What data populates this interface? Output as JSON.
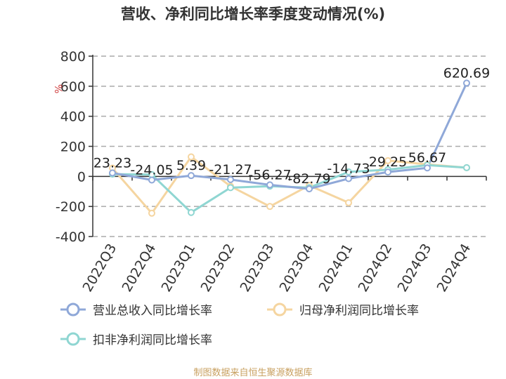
{
  "chart_data": {
    "type": "line",
    "title": "营收、净利同比增长率季度变动情况(%)",
    "ylabel": "%",
    "ylim": [
      -400,
      800
    ],
    "yticks": [
      -400,
      -200,
      0,
      200,
      400,
      600,
      800
    ],
    "grid": true,
    "legend_position": "bottom",
    "categories": [
      "2022Q3",
      "2022Q4",
      "2023Q1",
      "2023Q2",
      "2023Q3",
      "2023Q4",
      "2024Q1",
      "2024Q2",
      "2024Q3",
      "2024Q4"
    ],
    "series": [
      {
        "name": "营业总收入同比增长率",
        "color": "#8fa8d8",
        "values": [
          23.23,
          -24.05,
          5.39,
          -21.27,
          -56.27,
          -82.79,
          -14.73,
          29.25,
          56.67,
          620.69
        ],
        "labels": [
          "23.23",
          "-24.05",
          "5.39",
          "-21.27",
          "-56.27",
          "-82.79",
          "-14.73",
          "29.25",
          "56.67",
          "620.69"
        ]
      },
      {
        "name": "归母净利润同比增长率",
        "color": "#f5d5a0",
        "values": [
          55,
          -245,
          130,
          -65,
          -200,
          -60,
          -175,
          105,
          80,
          58
        ]
      },
      {
        "name": "扣非净利润同比增长率",
        "color": "#8fd6d2",
        "values": [
          15,
          12,
          -240,
          -75,
          -65,
          -75,
          30,
          45,
          75,
          58
        ]
      }
    ],
    "source": "制图数据来自恒生聚源数据库"
  }
}
